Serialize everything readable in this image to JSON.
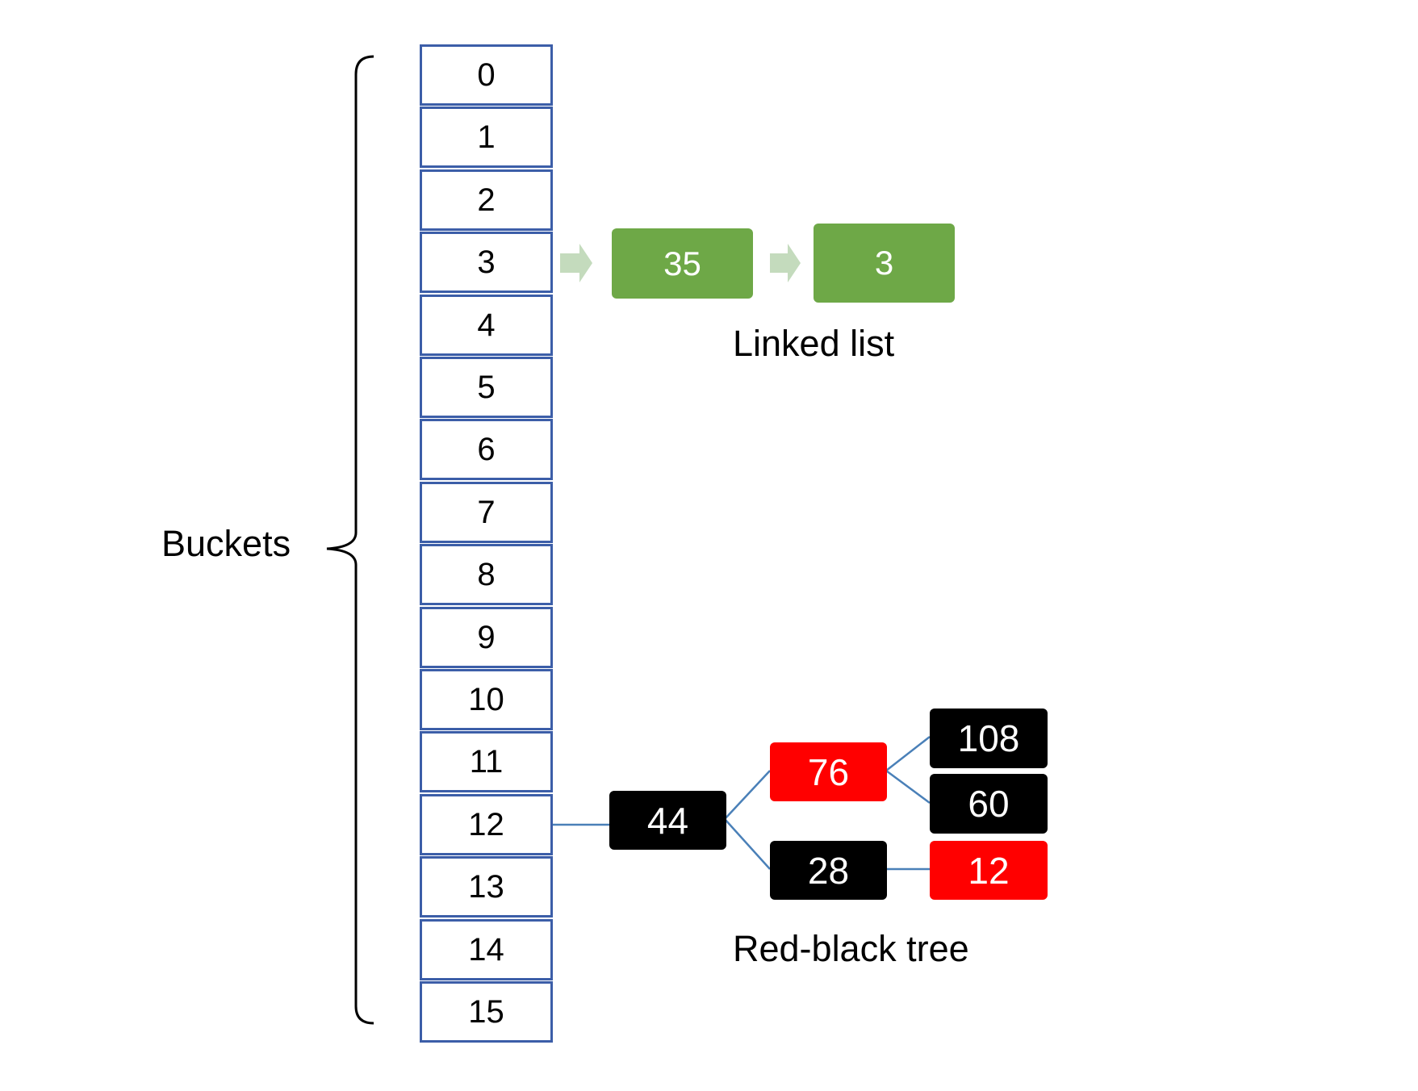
{
  "buckets": {
    "label": "Buckets",
    "indices": [
      "0",
      "1",
      "2",
      "3",
      "4",
      "5",
      "6",
      "7",
      "8",
      "9",
      "10",
      "11",
      "12",
      "13",
      "14",
      "15"
    ]
  },
  "linked_list": {
    "caption": "Linked list",
    "bucket": "3",
    "nodes": [
      "35",
      "3"
    ],
    "node_color": "#6ea847",
    "arrow_color": "#c4dbbd"
  },
  "red_black_tree": {
    "caption": "Red-black tree",
    "bucket": "12",
    "line_color": "#4a80b8",
    "root": {
      "value": "44",
      "color": "black"
    },
    "left_upper": {
      "value": "76",
      "color": "red"
    },
    "left_lower": {
      "value": "28",
      "color": "black"
    },
    "leaf_108": {
      "value": "108",
      "color": "black"
    },
    "leaf_60": {
      "value": "60",
      "color": "black"
    },
    "leaf_12": {
      "value": "12",
      "color": "red"
    }
  },
  "colors": {
    "bucket_border": "#3c5ea8",
    "black_node": "#000000",
    "red_node": "#ff0000"
  }
}
